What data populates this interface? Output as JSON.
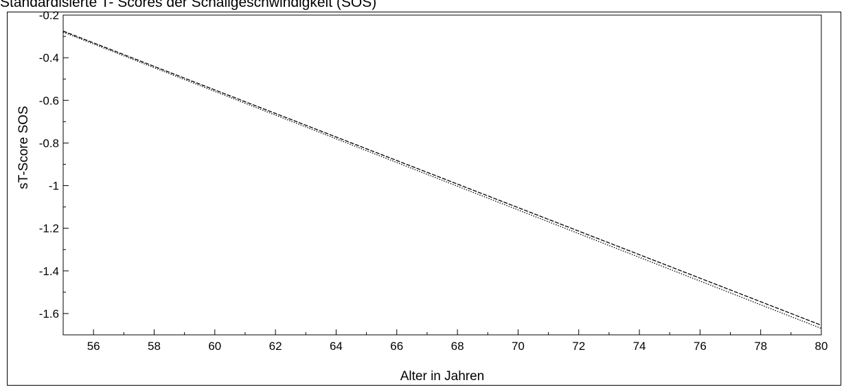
{
  "chart_data": {
    "type": "line",
    "title": "Standardisierte T- Scores der Schallgeschwindigkeit (SOS)",
    "xlabel": "Alter in Jahren",
    "ylabel": "sT-Score SOS",
    "xlim": [
      55,
      80
    ],
    "ylim": [
      -1.7,
      -0.2
    ],
    "x_ticks": [
      56,
      58,
      60,
      62,
      64,
      66,
      68,
      70,
      72,
      74,
      76,
      78,
      80
    ],
    "x_tick_labels": [
      "56",
      "58",
      "60",
      "62",
      "64",
      "66",
      "68",
      "70",
      "72",
      "74",
      "76",
      "78",
      "80"
    ],
    "y_ticks": [
      -0.2,
      -0.4,
      -0.6,
      -0.8,
      -1,
      -1.2,
      -1.4,
      -1.6
    ],
    "y_tick_labels": [
      "-0.2",
      "-0.4",
      "-0.6",
      "-0.8",
      "-1",
      "-1.2",
      "-1.4",
      "-1.6"
    ],
    "grid": false,
    "legend": "none",
    "series": [
      {
        "style": "dashed",
        "color": "#000000",
        "x": [
          55,
          80
        ],
        "y": [
          -0.275,
          -1.655
        ]
      },
      {
        "style": "dotted",
        "color": "#000000",
        "x": [
          55,
          80
        ],
        "y": [
          -0.28,
          -1.67
        ]
      }
    ]
  }
}
